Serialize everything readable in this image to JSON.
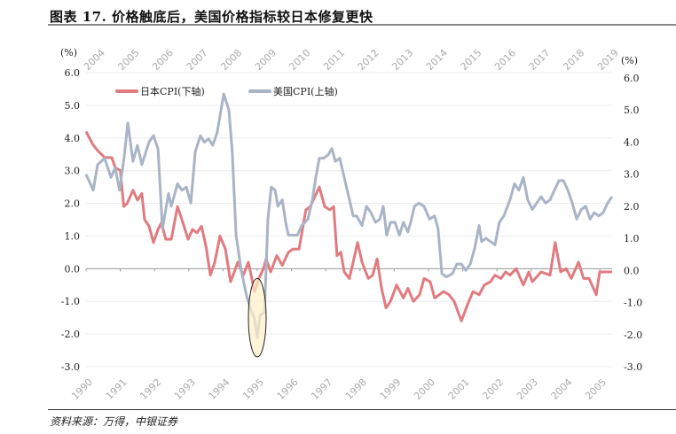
{
  "title": "图表 17. 价格触底后，美国价格指标较日本修复更快",
  "source": "资料来源：万得，中银证券",
  "chart_data": {
    "type": "line",
    "title": "图表 17. 价格触底后，美国价格指标较日本修复更快",
    "left_axis": {
      "unit": "(%)",
      "ylim": [
        -3,
        6
      ],
      "ticks": [
        "6.0",
        "5.0",
        "4.0",
        "3.0",
        "2.0",
        "1.0",
        "0.0",
        "-1.0",
        "-2.0",
        "-3.0"
      ]
    },
    "right_axis": {
      "unit": "(%)",
      "ylim": [
        -3,
        6
      ],
      "ticks": [
        "6.0",
        "5.0",
        "4.0",
        "3.0",
        "2.0",
        "1.0",
        "0.0",
        "-1.0",
        "-2.0",
        "-3.0"
      ]
    },
    "bottom_axis": {
      "start_year": 1990,
      "ticks": [
        "1990",
        "1991",
        "1992",
        "1993",
        "1994",
        "1995",
        "1996",
        "1997",
        "1998",
        "1999",
        "2000",
        "2001",
        "2002",
        "2003",
        "2004",
        "2005"
      ]
    },
    "top_axis": {
      "start_year": 2004,
      "ticks": [
        "2004",
        "2005",
        "2006",
        "2007",
        "2008",
        "2009",
        "2010",
        "2011",
        "2012",
        "2013",
        "2014",
        "2015",
        "2016",
        "2017",
        "2018",
        "2019"
      ]
    },
    "grid": true,
    "legend_position": "top-left",
    "annotation": {
      "type": "ellipse",
      "near_year_bottom": 1995,
      "value_range": [
        -2.7,
        -0.3
      ]
    },
    "series": [
      {
        "name": "日本CPI(下轴)",
        "axis": "bottom-left",
        "color": "#e07b80",
        "points": [
          [
            0,
            4.2
          ],
          [
            0.2,
            3.8
          ],
          [
            0.35,
            3.6
          ],
          [
            0.55,
            3.4
          ],
          [
            0.75,
            3.4
          ],
          [
            0.85,
            3.1
          ],
          [
            1.0,
            3.0
          ],
          [
            1.1,
            1.9
          ],
          [
            1.2,
            2.0
          ],
          [
            1.37,
            2.4
          ],
          [
            1.5,
            2.1
          ],
          [
            1.63,
            2.3
          ],
          [
            1.71,
            1.5
          ],
          [
            1.84,
            1.3
          ],
          [
            1.97,
            0.8
          ],
          [
            2.1,
            1.2
          ],
          [
            2.2,
            1.4
          ],
          [
            2.33,
            0.9
          ],
          [
            2.49,
            0.9
          ],
          [
            2.67,
            1.9
          ],
          [
            2.8,
            1.5
          ],
          [
            2.98,
            0.9
          ],
          [
            3.11,
            1.2
          ],
          [
            3.24,
            1.1
          ],
          [
            3.37,
            1.3
          ],
          [
            3.5,
            0.7
          ],
          [
            3.63,
            -0.2
          ],
          [
            3.76,
            0.2
          ],
          [
            3.91,
            1.0
          ],
          [
            4.07,
            0.6
          ],
          [
            4.22,
            -0.4
          ],
          [
            4.33,
            -0.1
          ],
          [
            4.43,
            0.2
          ],
          [
            4.59,
            -0.2
          ],
          [
            4.74,
            0.2
          ],
          [
            4.92,
            -0.7
          ],
          [
            5.05,
            -0.3
          ],
          [
            5.18,
            0.0
          ],
          [
            5.26,
            0.3
          ],
          [
            5.39,
            -0.1
          ],
          [
            5.57,
            0.4
          ],
          [
            5.73,
            0.1
          ],
          [
            5.91,
            0.5
          ],
          [
            6.04,
            0.6
          ],
          [
            6.22,
            0.6
          ],
          [
            6.42,
            1.8
          ],
          [
            6.55,
            1.9
          ],
          [
            6.68,
            2.2
          ],
          [
            6.81,
            2.5
          ],
          [
            6.97,
            1.9
          ],
          [
            7.12,
            1.8
          ],
          [
            7.23,
            1.9
          ],
          [
            7.33,
            0.4
          ],
          [
            7.44,
            0.5
          ],
          [
            7.54,
            -0.1
          ],
          [
            7.69,
            -0.3
          ],
          [
            7.8,
            0.2
          ],
          [
            7.93,
            0.8
          ],
          [
            8.06,
            0.2
          ],
          [
            8.24,
            -0.3
          ],
          [
            8.37,
            -0.2
          ],
          [
            8.5,
            0.3
          ],
          [
            8.63,
            -0.6
          ],
          [
            8.76,
            -1.2
          ],
          [
            8.89,
            -1.0
          ],
          [
            9.07,
            -0.5
          ],
          [
            9.27,
            -0.9
          ],
          [
            9.4,
            -0.6
          ],
          [
            9.56,
            -1.0
          ],
          [
            9.74,
            -0.8
          ],
          [
            9.87,
            -0.3
          ],
          [
            10.05,
            -0.4
          ],
          [
            10.18,
            -0.9
          ],
          [
            10.31,
            -0.8
          ],
          [
            10.44,
            -0.7
          ],
          [
            10.6,
            -0.8
          ],
          [
            10.75,
            -1.0
          ],
          [
            10.96,
            -1.6
          ],
          [
            11.14,
            -1.1
          ],
          [
            11.3,
            -0.7
          ],
          [
            11.48,
            -0.8
          ],
          [
            11.63,
            -0.5
          ],
          [
            11.81,
            -0.4
          ],
          [
            11.94,
            -0.2
          ],
          [
            12.12,
            -0.3
          ],
          [
            12.25,
            -0.1
          ],
          [
            12.38,
            -0.2
          ],
          [
            12.56,
            0.0
          ],
          [
            12.77,
            -0.5
          ],
          [
            12.93,
            -0.1
          ],
          [
            13.03,
            -0.4
          ],
          [
            13.29,
            -0.1
          ],
          [
            13.55,
            -0.2
          ],
          [
            13.7,
            0.8
          ],
          [
            13.86,
            -0.1
          ],
          [
            14.02,
            0.0
          ],
          [
            14.17,
            -0.3
          ],
          [
            14.38,
            0.2
          ],
          [
            14.53,
            -0.3
          ],
          [
            14.69,
            -0.3
          ],
          [
            14.9,
            -0.8
          ],
          [
            15.0,
            -0.1
          ],
          [
            15.16,
            -0.1
          ],
          [
            15.36,
            -0.1
          ]
        ]
      },
      {
        "name": "美国CPI(上轴)",
        "axis": "top-right",
        "color": "#a9b4c6",
        "points": [
          [
            0,
            3.0
          ],
          [
            0.21,
            2.5
          ],
          [
            0.34,
            3.3
          ],
          [
            0.54,
            3.5
          ],
          [
            0.73,
            2.9
          ],
          [
            0.85,
            3.2
          ],
          [
            0.98,
            2.5
          ],
          [
            1.11,
            3.5
          ],
          [
            1.22,
            4.6
          ],
          [
            1.37,
            3.4
          ],
          [
            1.5,
            3.9
          ],
          [
            1.63,
            3.3
          ],
          [
            1.84,
            4.0
          ],
          [
            1.97,
            4.2
          ],
          [
            2.1,
            3.8
          ],
          [
            2.23,
            1.3
          ],
          [
            2.41,
            2.4
          ],
          [
            2.49,
            2.0
          ],
          [
            2.67,
            2.7
          ],
          [
            2.8,
            2.5
          ],
          [
            2.93,
            2.6
          ],
          [
            3.06,
            2.1
          ],
          [
            3.19,
            3.7
          ],
          [
            3.34,
            4.2
          ],
          [
            3.45,
            4.0
          ],
          [
            3.58,
            4.1
          ],
          [
            3.7,
            3.9
          ],
          [
            3.83,
            4.3
          ],
          [
            4.02,
            5.5
          ],
          [
            4.17,
            5.0
          ],
          [
            4.27,
            3.7
          ],
          [
            4.38,
            1.1
          ],
          [
            4.53,
            0.0
          ],
          [
            4.69,
            -0.8
          ],
          [
            4.84,
            -1.3
          ],
          [
            4.92,
            -1.5
          ],
          [
            5.0,
            -2.1
          ],
          [
            5.08,
            -1.4
          ],
          [
            5.21,
            -1.3
          ],
          [
            5.31,
            1.6
          ],
          [
            5.41,
            2.6
          ],
          [
            5.52,
            2.5
          ],
          [
            5.6,
            2.0
          ],
          [
            5.73,
            2.2
          ],
          [
            5.83,
            1.5
          ],
          [
            5.91,
            1.1
          ],
          [
            6.04,
            1.1
          ],
          [
            6.17,
            1.1
          ],
          [
            6.3,
            1.4
          ],
          [
            6.48,
            1.6
          ],
          [
            6.61,
            2.2
          ],
          [
            6.71,
            2.9
          ],
          [
            6.81,
            3.5
          ],
          [
            6.94,
            3.5
          ],
          [
            7.07,
            3.6
          ],
          [
            7.18,
            3.8
          ],
          [
            7.28,
            3.4
          ],
          [
            7.41,
            3.5
          ],
          [
            7.54,
            2.9
          ],
          [
            7.67,
            2.3
          ],
          [
            7.8,
            1.7
          ],
          [
            7.9,
            1.7
          ],
          [
            8.06,
            1.4
          ],
          [
            8.19,
            2.0
          ],
          [
            8.32,
            1.8
          ],
          [
            8.45,
            1.5
          ],
          [
            8.58,
            1.6
          ],
          [
            8.68,
            2.0
          ],
          [
            8.78,
            1.1
          ],
          [
            8.89,
            1.5
          ],
          [
            9.02,
            1.5
          ],
          [
            9.15,
            1.1
          ],
          [
            9.27,
            1.5
          ],
          [
            9.4,
            1.2
          ],
          [
            9.48,
            1.5
          ],
          [
            9.59,
            2.0
          ],
          [
            9.72,
            2.1
          ],
          [
            9.87,
            2.0
          ],
          [
            10.03,
            1.6
          ],
          [
            10.18,
            1.7
          ],
          [
            10.28,
            1.3
          ],
          [
            10.39,
            -0.1
          ],
          [
            10.52,
            -0.2
          ],
          [
            10.7,
            -0.1
          ],
          [
            10.83,
            0.2
          ],
          [
            10.96,
            0.2
          ],
          [
            11.09,
            0.0
          ],
          [
            11.22,
            0.2
          ],
          [
            11.35,
            0.7
          ],
          [
            11.48,
            1.4
          ],
          [
            11.55,
            0.9
          ],
          [
            11.68,
            1.0
          ],
          [
            11.81,
            0.9
          ],
          [
            11.94,
            0.8
          ],
          [
            12.07,
            1.5
          ],
          [
            12.2,
            1.7
          ],
          [
            12.38,
            2.2
          ],
          [
            12.51,
            2.7
          ],
          [
            12.64,
            2.5
          ],
          [
            12.77,
            2.9
          ],
          [
            12.9,
            2.2
          ],
          [
            13.03,
            1.9
          ],
          [
            13.16,
            2.1
          ],
          [
            13.29,
            2.3
          ],
          [
            13.42,
            2.1
          ],
          [
            13.55,
            2.2
          ],
          [
            13.68,
            2.5
          ],
          [
            13.81,
            2.8
          ],
          [
            13.94,
            2.8
          ],
          [
            14.07,
            2.5
          ],
          [
            14.2,
            2.1
          ],
          [
            14.33,
            1.6
          ],
          [
            14.46,
            1.9
          ],
          [
            14.59,
            2.0
          ],
          [
            14.72,
            1.6
          ],
          [
            14.84,
            1.8
          ],
          [
            14.97,
            1.7
          ],
          [
            15.1,
            1.8
          ],
          [
            15.23,
            2.1
          ],
          [
            15.36,
            2.3
          ]
        ]
      }
    ]
  }
}
